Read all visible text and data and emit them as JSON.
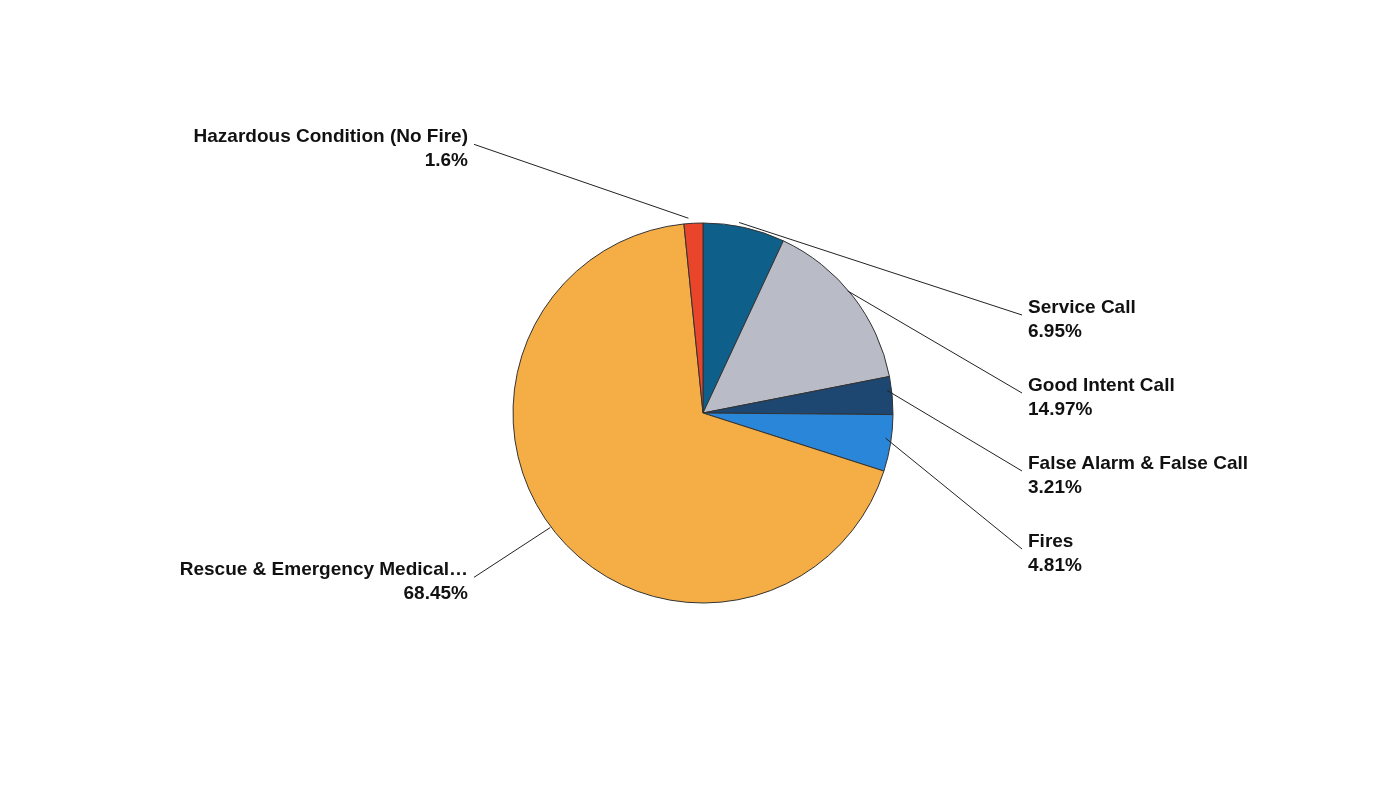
{
  "chart_data": {
    "type": "pie",
    "categories": [
      "Service Call",
      "Good Intent Call",
      "False Alarm & False Call",
      "Fires",
      "Rescue & Emergency Medical…",
      "Hazardous Condition (No Fire)"
    ],
    "values": [
      6.95,
      14.97,
      3.21,
      4.81,
      68.45,
      1.6
    ],
    "colors": [
      "#0e5f8a",
      "#b9bcc6",
      "#1d4670",
      "#2a86d8",
      "#f5ae45",
      "#e8452a"
    ],
    "value_labels": [
      "6.95%",
      "14.97%",
      "3.21%",
      "4.81%",
      "68.45%",
      "1.6%"
    ]
  }
}
